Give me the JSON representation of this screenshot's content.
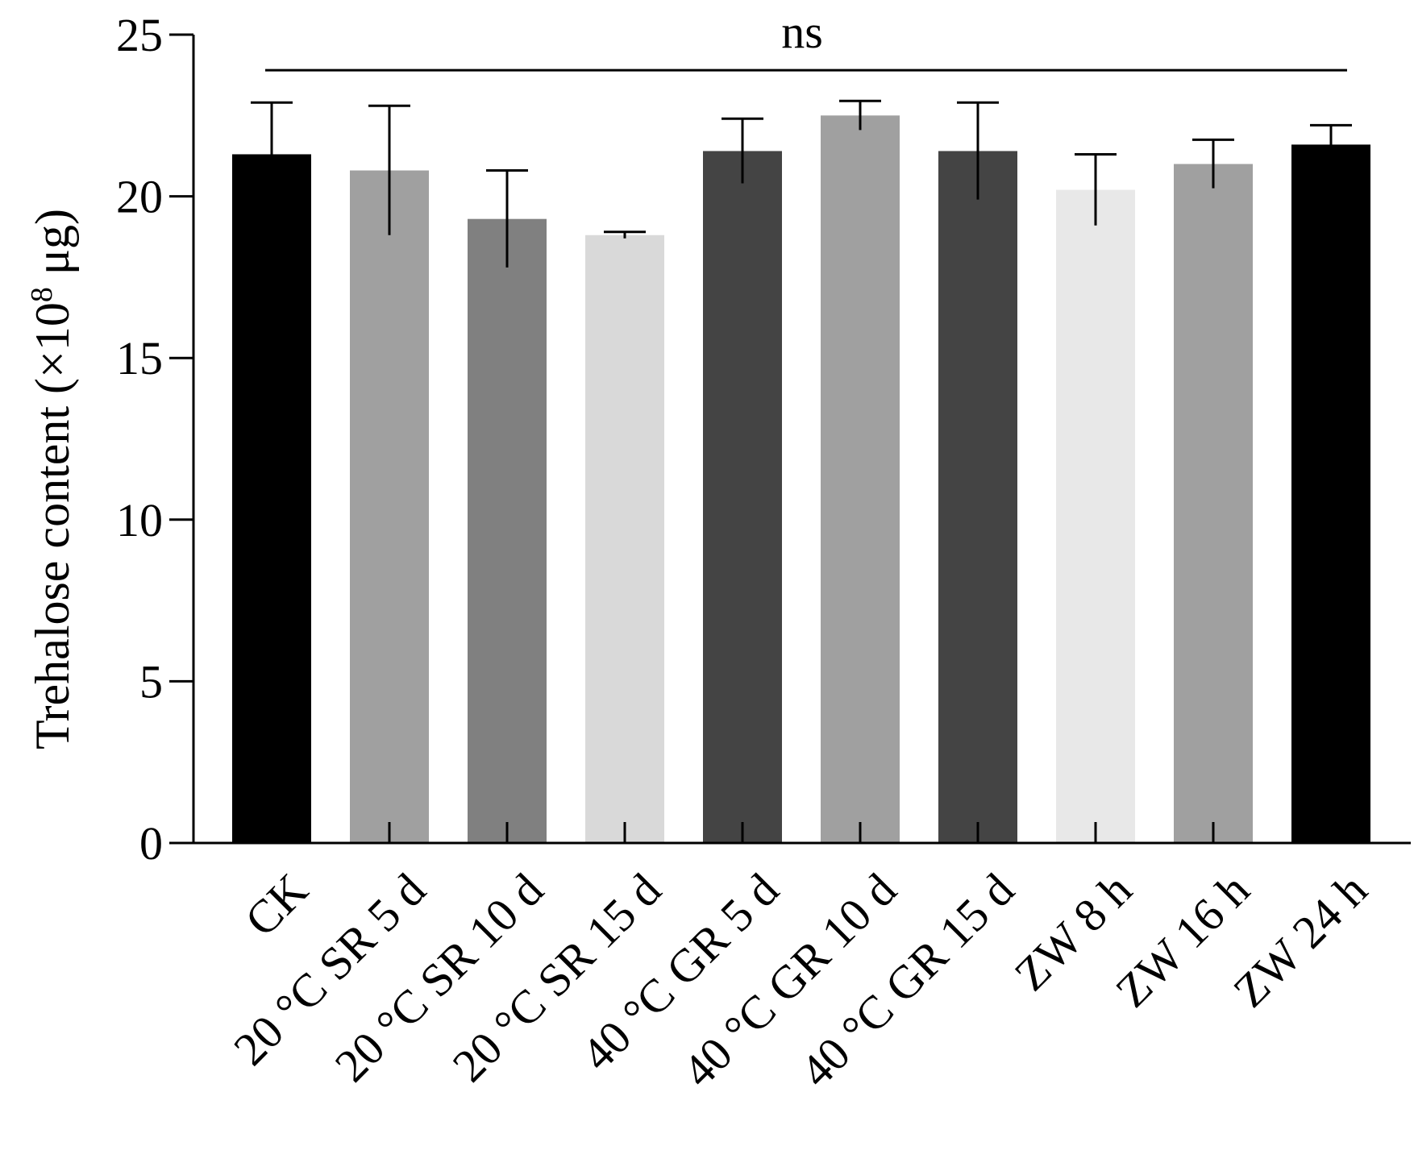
{
  "chart_data": {
    "type": "bar",
    "ylabel_main": "Trehalose content (×10",
    "ylabel_sup": "8",
    "ylabel_unit": " μg)",
    "xlabel": "",
    "ylim": [
      0,
      25
    ],
    "yticks": [
      "0",
      "5",
      "10",
      "15",
      "20",
      "25"
    ],
    "categories": [
      "CK",
      "20 °C SR 5 d",
      "20 °C SR 10 d",
      "20 °C SR 15 d",
      "40 °C GR 5 d",
      "40 °C GR 10 d",
      "40 °C GR 15 d",
      "ZW 8 h",
      "ZW 16 h",
      "ZW 24 h"
    ],
    "values": [
      21.3,
      20.8,
      19.3,
      18.8,
      21.4,
      22.5,
      21.4,
      20.2,
      21.0,
      21.6
    ],
    "errors": [
      1.6,
      2.0,
      1.5,
      0.1,
      1.0,
      0.45,
      1.5,
      1.1,
      0.75,
      0.6
    ],
    "colors": [
      "#000000",
      "#a0a0a0",
      "#808080",
      "#d9d9d9",
      "#444444",
      "#a0a0a0",
      "#444444",
      "#e8e8e8",
      "#a0a0a0",
      "#000000"
    ],
    "significance": {
      "label": "ns",
      "value": 23.9
    },
    "grid": false,
    "legend": "none"
  }
}
